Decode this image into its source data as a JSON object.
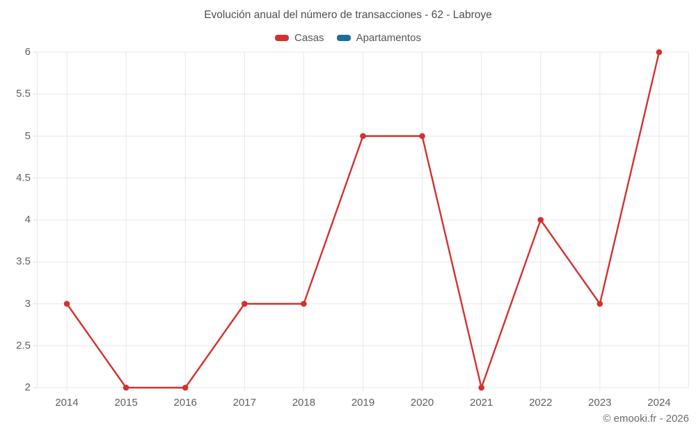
{
  "page": {
    "title": "Evolución anual del número de transacciones - 62 - Labroye",
    "footer": "© emooki.fr - 2026"
  },
  "legend": {
    "items": [
      {
        "label": "Casas",
        "color": "#d5302b"
      },
      {
        "label": "Apartamentos",
        "color": "#1b6f9e"
      }
    ]
  },
  "chart_data": {
    "type": "line",
    "title": "Evolución anual del número de transacciones - 62 - Labroye",
    "x": [
      2014,
      2015,
      2016,
      2017,
      2018,
      2019,
      2020,
      2021,
      2022,
      2023,
      2024
    ],
    "series": [
      {
        "name": "Casas",
        "color": "#d5302b",
        "values": [
          3,
          2,
          2,
          3,
          3,
          5,
          5,
          2,
          4,
          3,
          6
        ]
      },
      {
        "name": "Apartamentos",
        "color": "#1b6f9e",
        "values": []
      }
    ],
    "xlabel": "",
    "ylabel": "",
    "ylim": [
      2,
      6
    ],
    "ytick_step": 0.5,
    "yticks": [
      2,
      2.5,
      3,
      3.5,
      4,
      4.5,
      5,
      5.5,
      6
    ],
    "grid": true,
    "grid_color": "#e8e8e8",
    "legend_position": "top",
    "marker": "circle",
    "annotation": "© emooki.fr - 2026"
  }
}
